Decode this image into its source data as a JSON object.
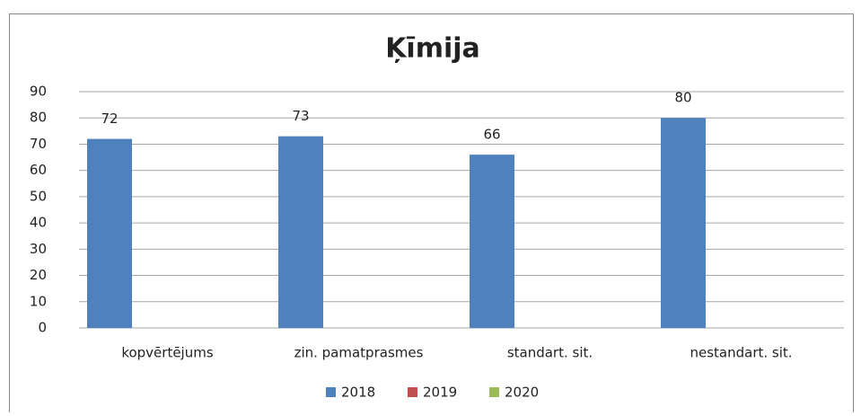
{
  "chart_data": {
    "type": "bar",
    "title": "Ķīmija",
    "categories": [
      "kopvērtējums",
      "zin. pamatprasmes",
      "standart. sit.",
      "nestandart. sit."
    ],
    "series": [
      {
        "name": "2018",
        "color": "#4f81bd",
        "values": [
          72,
          73,
          66,
          80
        ]
      },
      {
        "name": "2019",
        "color": "#c0504d",
        "values": [
          null,
          null,
          null,
          null
        ]
      },
      {
        "name": "2020",
        "color": "#9bbb59",
        "values": [
          null,
          null,
          null,
          null
        ]
      }
    ],
    "ylim": [
      0,
      90
    ],
    "yticks": [
      0,
      10,
      20,
      30,
      40,
      50,
      60,
      70,
      80,
      90
    ],
    "grid": true,
    "legend": "bottom"
  }
}
